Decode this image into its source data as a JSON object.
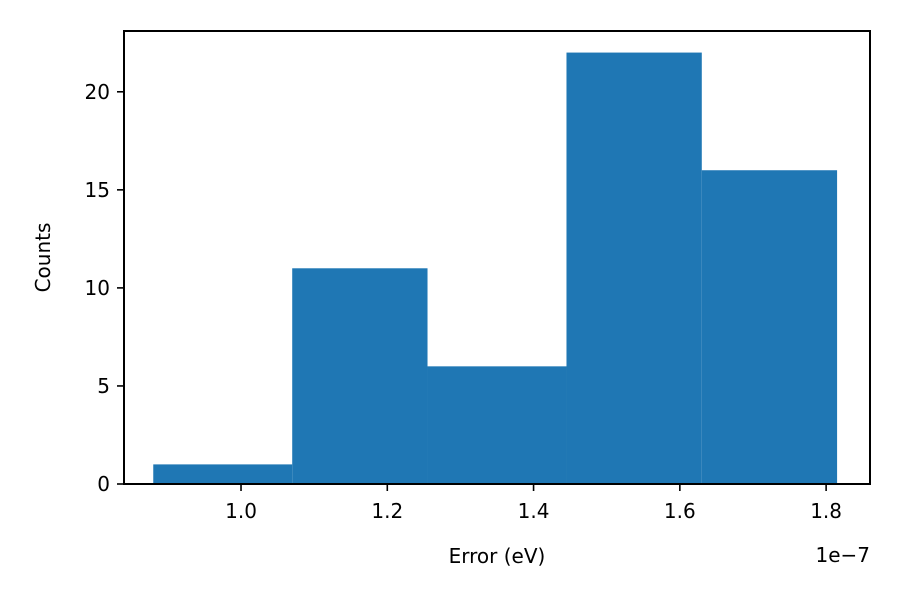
{
  "chart_data": {
    "type": "bar",
    "subtype": "histogram",
    "title": "",
    "xlabel": "Error (eV)",
    "ylabel": "Counts",
    "x_offset_label": "1e−7",
    "bins": [
      {
        "start": 8.8e-08,
        "end": 1.07e-07,
        "count": 1
      },
      {
        "start": 1.07e-07,
        "end": 1.255e-07,
        "count": 11
      },
      {
        "start": 1.255e-07,
        "end": 1.445e-07,
        "count": 6
      },
      {
        "start": 1.445e-07,
        "end": 1.63e-07,
        "count": 22
      },
      {
        "start": 1.63e-07,
        "end": 1.815e-07,
        "count": 16
      }
    ],
    "xlim": [
      8.4e-08,
      1.86e-07
    ],
    "ylim": [
      0,
      23.1
    ],
    "x_ticks": [
      {
        "value": 1e-07,
        "label": "1.0"
      },
      {
        "value": 1.2e-07,
        "label": "1.2"
      },
      {
        "value": 1.4e-07,
        "label": "1.4"
      },
      {
        "value": 1.6e-07,
        "label": "1.6"
      },
      {
        "value": 1.8e-07,
        "label": "1.8"
      }
    ],
    "y_ticks": [
      {
        "value": 0,
        "label": "0"
      },
      {
        "value": 5,
        "label": "5"
      },
      {
        "value": 10,
        "label": "10"
      },
      {
        "value": 15,
        "label": "15"
      },
      {
        "value": 20,
        "label": "20"
      }
    ],
    "grid": false,
    "bar_color": "#1f77b4"
  }
}
